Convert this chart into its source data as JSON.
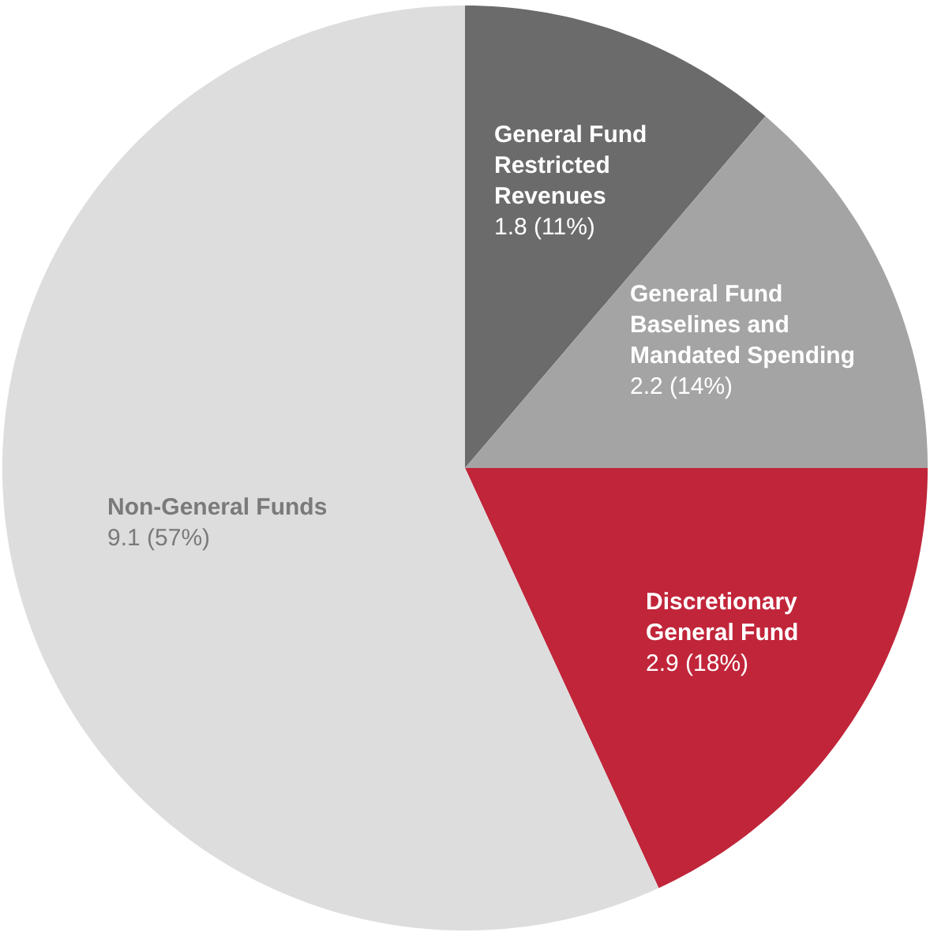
{
  "chart_data": {
    "type": "pie",
    "categories": [
      "General Fund Restricted Revenues",
      "General Fund Baselines and Mandated Spending",
      "Discretionary General Fund",
      "Non-General Funds"
    ],
    "values": [
      1.8,
      2.2,
      2.9,
      9.1
    ],
    "value_labels": [
      "1.8 (11%)",
      "2.2 (14%)",
      "2.9 (18%)",
      "9.1 (57%)"
    ],
    "colors": [
      "#6b6b6b",
      "#a4a4a4",
      "#c1253a",
      "#dddddd"
    ]
  }
}
